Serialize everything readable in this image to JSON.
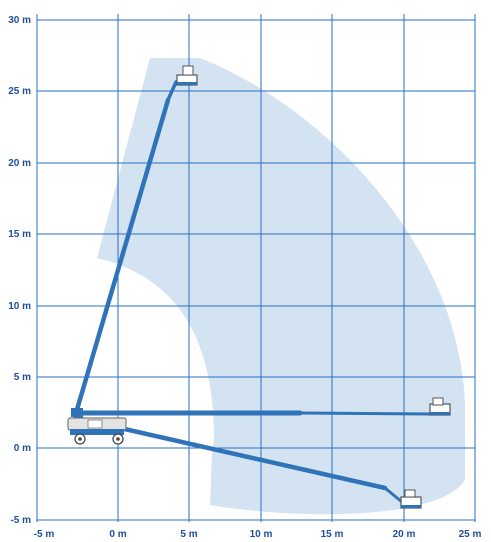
{
  "axes": {
    "x_ticks": [
      "-5 m",
      "0 m",
      "5 m",
      "10 m",
      "15 m",
      "20 m",
      "25 m"
    ],
    "y_ticks": [
      "30 m",
      "25 m",
      "20 m",
      "15 m",
      "10 m",
      "5 m",
      "0 m",
      "-5 m"
    ],
    "x_range": [
      -5,
      25
    ],
    "y_range": [
      -5,
      30
    ]
  },
  "colors": {
    "grid": "#2a6fc4",
    "labels": "#1f4e9a",
    "envelope": "#d3e3f1",
    "boom": "#2f73b8",
    "machine": "#e3e3e3"
  },
  "boom_positions": [
    {
      "name": "boom-elevated",
      "pivot": [
        -3,
        2.5
      ],
      "tip": [
        4.5,
        26
      ]
    },
    {
      "name": "boom-horizontal",
      "pivot": [
        -3,
        2.5
      ],
      "tip": [
        22.5,
        2.3
      ]
    },
    {
      "name": "boom-below-grade",
      "pivot": [
        -3,
        2.5
      ],
      "tip": [
        20.5,
        -4
      ]
    }
  ]
}
